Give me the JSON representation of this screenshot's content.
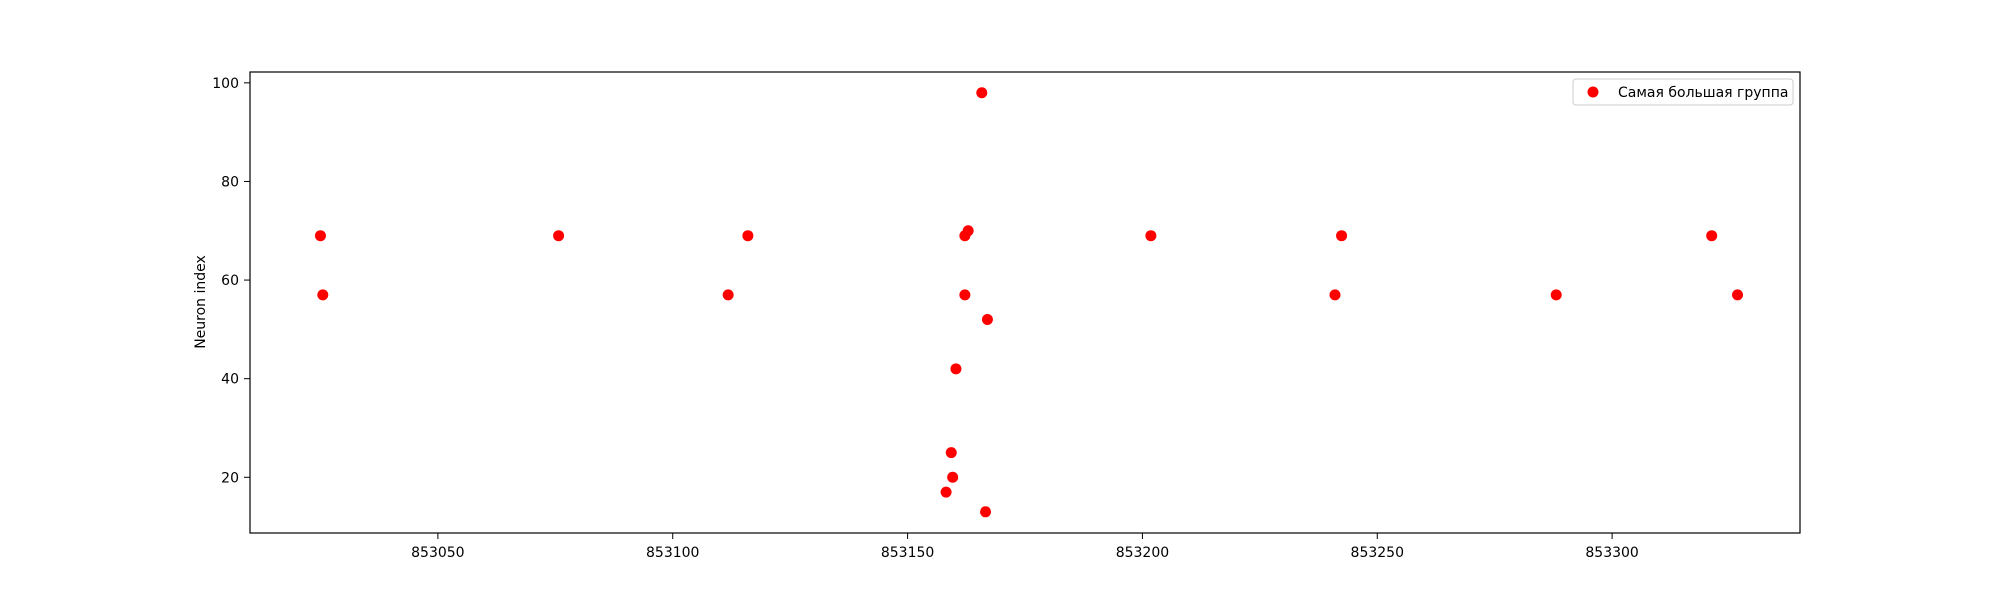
{
  "chart_data": {
    "type": "scatter",
    "title": "",
    "xlabel": "",
    "ylabel": "Neuron index",
    "xlim": [
      853010,
      853340
    ],
    "ylim": [
      8.7,
      102.2
    ],
    "xticks": [
      853050,
      853100,
      853150,
      853200,
      853250,
      853300
    ],
    "yticks": [
      20,
      40,
      60,
      80,
      100
    ],
    "grid": false,
    "legend_position": "top-right",
    "series": [
      {
        "name": "Самая большая группа",
        "color": "#ff0000",
        "points": [
          {
            "x": 853025.0,
            "y": 69
          },
          {
            "x": 853025.5,
            "y": 57
          },
          {
            "x": 853075.7,
            "y": 69
          },
          {
            "x": 853111.8,
            "y": 57
          },
          {
            "x": 853116.0,
            "y": 69
          },
          {
            "x": 853158.2,
            "y": 17
          },
          {
            "x": 853159.3,
            "y": 25
          },
          {
            "x": 853159.6,
            "y": 20
          },
          {
            "x": 853160.3,
            "y": 42
          },
          {
            "x": 853162.2,
            "y": 69
          },
          {
            "x": 853162.2,
            "y": 57
          },
          {
            "x": 853162.9,
            "y": 70
          },
          {
            "x": 853165.8,
            "y": 98
          },
          {
            "x": 853166.6,
            "y": 13
          },
          {
            "x": 853167.0,
            "y": 52
          },
          {
            "x": 853201.8,
            "y": 69
          },
          {
            "x": 853241.0,
            "y": 57
          },
          {
            "x": 853242.4,
            "y": 69
          },
          {
            "x": 853288.1,
            "y": 57
          },
          {
            "x": 853321.2,
            "y": 69
          },
          {
            "x": 853326.7,
            "y": 57
          }
        ]
      }
    ]
  }
}
